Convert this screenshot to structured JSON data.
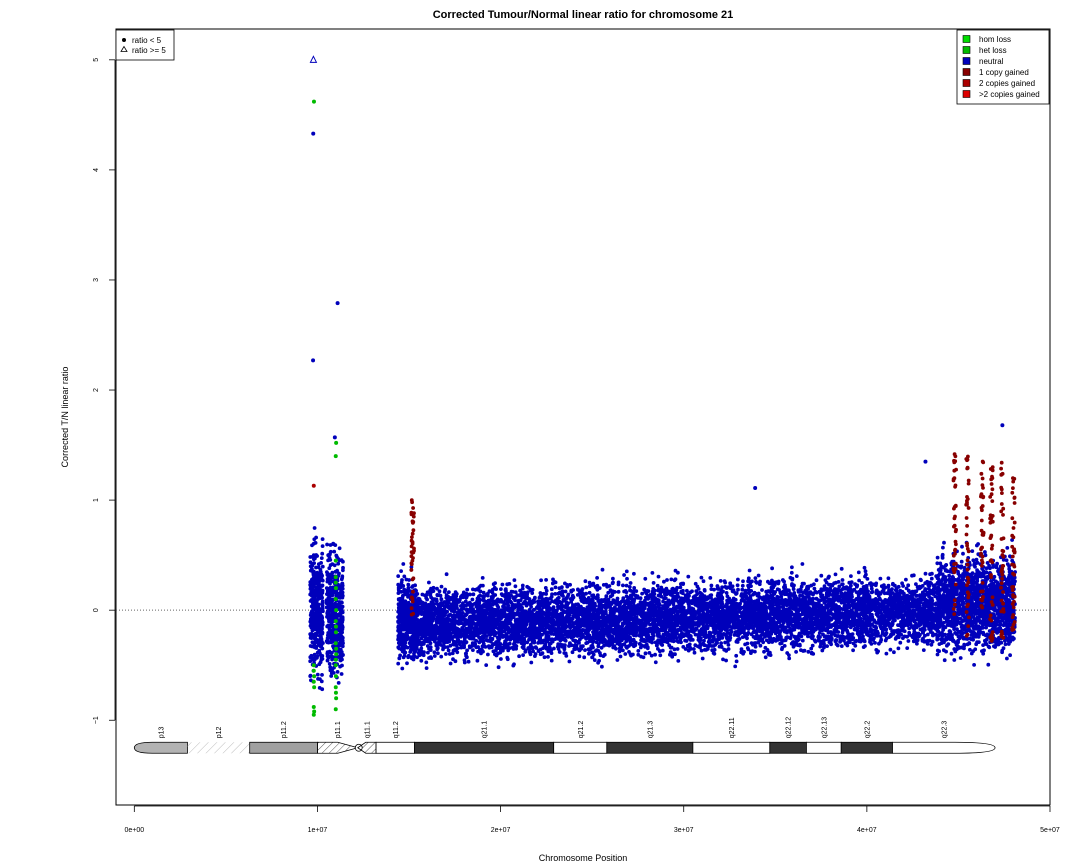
{
  "chart_data": {
    "type": "scatter",
    "title": "Corrected Tumour/Normal linear ratio for chromosome  21",
    "xlabel": "Chromosome Position",
    "ylabel": "Corrected T/N linear ratio",
    "xlim": [
      -1000000,
      50000000
    ],
    "ylim": [
      -1.77,
      5.28
    ],
    "x_ticks": [
      {
        "value": 0,
        "label": "0e+00"
      },
      {
        "value": 10000000,
        "label": "1e+07"
      },
      {
        "value": 20000000,
        "label": "2e+07"
      },
      {
        "value": 30000000,
        "label": "3e+07"
      },
      {
        "value": 40000000,
        "label": "4e+07"
      },
      {
        "value": 50000000,
        "label": "5e+07"
      }
    ],
    "y_ticks": [
      {
        "value": -1,
        "label": "−1"
      },
      {
        "value": 0,
        "label": "0"
      },
      {
        "value": 1,
        "label": "1"
      },
      {
        "value": 2,
        "label": "2"
      },
      {
        "value": 3,
        "label": "3"
      },
      {
        "value": 4,
        "label": "4"
      },
      {
        "value": 5,
        "label": "5"
      }
    ],
    "reference_line": {
      "y": 0,
      "style": "dotted"
    },
    "shape_legend": {
      "position": "top-left",
      "entries": [
        {
          "symbol": "filled-circle",
          "label": "ratio < 5"
        },
        {
          "symbol": "open-triangle",
          "label": "ratio >= 5"
        }
      ]
    },
    "color_legend": {
      "position": "top-right",
      "entries": [
        {
          "label": "hom loss",
          "color": "#00dd00"
        },
        {
          "label": "het loss",
          "color": "#00bb00"
        },
        {
          "label": "neutral",
          "color": "#0000bb"
        },
        {
          "label": "1 copy gained",
          "color": "#880000"
        },
        {
          "label": "2 copies gained",
          "color": "#aa0000"
        },
        {
          "label": ">2 copies gained",
          "color": "#dd0000"
        }
      ]
    },
    "dense_regions": [
      {
        "x_start": 9600000,
        "x_end": 10300000,
        "y_center": 0.0,
        "spread": 0.28,
        "count": 380,
        "color": "#0000bb",
        "growth": 0
      },
      {
        "x_start": 10500000,
        "x_end": 11400000,
        "y_center": -0.05,
        "spread": 0.26,
        "count": 420,
        "color": "#0000bb",
        "growth": 0
      },
      {
        "x_start": 14400000,
        "x_end": 15400000,
        "y_center": -0.08,
        "spread": 0.17,
        "count": 450,
        "color": "#0000bb",
        "growth": 0
      },
      {
        "x_start": 15400000,
        "x_end": 43800000,
        "y_center": -0.12,
        "spread": 0.15,
        "count": 7200,
        "color": "#0000bb",
        "growth": 3.8e-09
      },
      {
        "x_start": 43800000,
        "x_end": 48100000,
        "y_center": 0.06,
        "spread": 0.2,
        "count": 1500,
        "color": "#0000bb",
        "growth": 0
      }
    ],
    "green_points": [
      {
        "x": 9800000,
        "y": -0.5
      },
      {
        "x": 9800000,
        "y": -0.55
      },
      {
        "x": 9820000,
        "y": -0.6
      },
      {
        "x": 9800000,
        "y": -0.65
      },
      {
        "x": 9820000,
        "y": -0.7
      },
      {
        "x": 9800000,
        "y": -0.95
      },
      {
        "x": 9820000,
        "y": -0.92
      },
      {
        "x": 9800000,
        "y": -0.88
      },
      {
        "x": 9810000,
        "y": 4.62
      },
      {
        "x": 11000000,
        "y": 0.45
      },
      {
        "x": 11000000,
        "y": 0.3
      },
      {
        "x": 11010000,
        "y": 0.2
      },
      {
        "x": 11000000,
        "y": 0.1
      },
      {
        "x": 11020000,
        "y": 0.0
      },
      {
        "x": 11000000,
        "y": -0.1
      },
      {
        "x": 11010000,
        "y": -0.2
      },
      {
        "x": 11000000,
        "y": -0.3
      },
      {
        "x": 11020000,
        "y": -0.4
      },
      {
        "x": 11000000,
        "y": -0.5
      },
      {
        "x": 11010000,
        "y": -0.6
      },
      {
        "x": 11000000,
        "y": -0.7
      },
      {
        "x": 11020000,
        "y": -0.8
      },
      {
        "x": 11000000,
        "y": -0.9
      },
      {
        "x": 11010000,
        "y": -0.15
      },
      {
        "x": 11000000,
        "y": 0.25
      },
      {
        "x": 11020000,
        "y": -0.35
      },
      {
        "x": 11000000,
        "y": -0.45
      },
      {
        "x": 11010000,
        "y": -0.75
      },
      {
        "x": 11000000,
        "y": 1.4
      },
      {
        "x": 11020000,
        "y": 1.52
      }
    ],
    "red_strips": [
      {
        "x": 15200000,
        "y_min": -0.1,
        "y_max": 1.0
      },
      {
        "x": 44800000,
        "y_min": -0.2,
        "y_max": 1.45
      },
      {
        "x": 45500000,
        "y_min": -0.25,
        "y_max": 1.4
      },
      {
        "x": 46300000,
        "y_min": -0.1,
        "y_max": 1.38
      },
      {
        "x": 46800000,
        "y_min": -0.3,
        "y_max": 1.3
      },
      {
        "x": 47400000,
        "y_min": -0.25,
        "y_max": 1.35
      },
      {
        "x": 48000000,
        "y_min": -0.2,
        "y_max": 1.28
      }
    ],
    "outliers": [
      {
        "x": 9780000,
        "y": 5.0,
        "color": "#0000bb",
        "shape": "triangle"
      },
      {
        "x": 9770000,
        "y": 4.33,
        "color": "#0000bb",
        "shape": "circle"
      },
      {
        "x": 9760000,
        "y": 2.27,
        "color": "#0000bb",
        "shape": "circle"
      },
      {
        "x": 11100000,
        "y": 2.79,
        "color": "#0000bb",
        "shape": "circle"
      },
      {
        "x": 10950000,
        "y": 1.57,
        "color": "#0000bb",
        "shape": "circle"
      },
      {
        "x": 9800000,
        "y": 1.13,
        "color": "#aa0000",
        "shape": "circle"
      },
      {
        "x": 47400000,
        "y": 1.68,
        "color": "#0000bb",
        "shape": "circle"
      },
      {
        "x": 33900000,
        "y": 1.11,
        "color": "#0000bb",
        "shape": "circle"
      },
      {
        "x": 43200000,
        "y": 1.35,
        "color": "#0000bb",
        "shape": "circle"
      }
    ],
    "ideogram": {
      "y": -1.25,
      "bands": [
        {
          "name": "p13",
          "start": 0,
          "end": 2900000,
          "fill": "#b3b3b3",
          "kind": "tip-left"
        },
        {
          "name": "p12",
          "start": 2900000,
          "end": 6300000,
          "fill": "none",
          "kind": "stalk"
        },
        {
          "name": "p11.2",
          "start": 6300000,
          "end": 10000000,
          "fill": "#a0a0a0",
          "kind": "band"
        },
        {
          "name": "p11.1",
          "start": 10000000,
          "end": 12200000,
          "fill": "hatch",
          "kind": "cen-left"
        },
        {
          "name": "q11.1",
          "start": 12200000,
          "end": 13200000,
          "fill": "hatch",
          "kind": "cen-right"
        },
        {
          "name": "q11.2",
          "start": 13200000,
          "end": 15300000,
          "fill": "#ffffff",
          "kind": "band"
        },
        {
          "name": "q21.1",
          "start": 15300000,
          "end": 22900000,
          "fill": "#333333",
          "kind": "band"
        },
        {
          "name": "q21.2",
          "start": 22900000,
          "end": 25800000,
          "fill": "#ffffff",
          "kind": "band"
        },
        {
          "name": "q21.3",
          "start": 25800000,
          "end": 30500000,
          "fill": "#333333",
          "kind": "band"
        },
        {
          "name": "q22.11",
          "start": 30500000,
          "end": 34700000,
          "fill": "#ffffff",
          "kind": "band"
        },
        {
          "name": "q22.12",
          "start": 34700000,
          "end": 36700000,
          "fill": "#333333",
          "kind": "band"
        },
        {
          "name": "q22.13",
          "start": 36700000,
          "end": 38600000,
          "fill": "#ffffff",
          "kind": "band"
        },
        {
          "name": "q22.2",
          "start": 38600000,
          "end": 41400000,
          "fill": "#333333",
          "kind": "band"
        },
        {
          "name": "q22.3",
          "start": 41400000,
          "end": 47000000,
          "fill": "#ffffff",
          "kind": "tip-right"
        }
      ]
    },
    "grid": false
  }
}
